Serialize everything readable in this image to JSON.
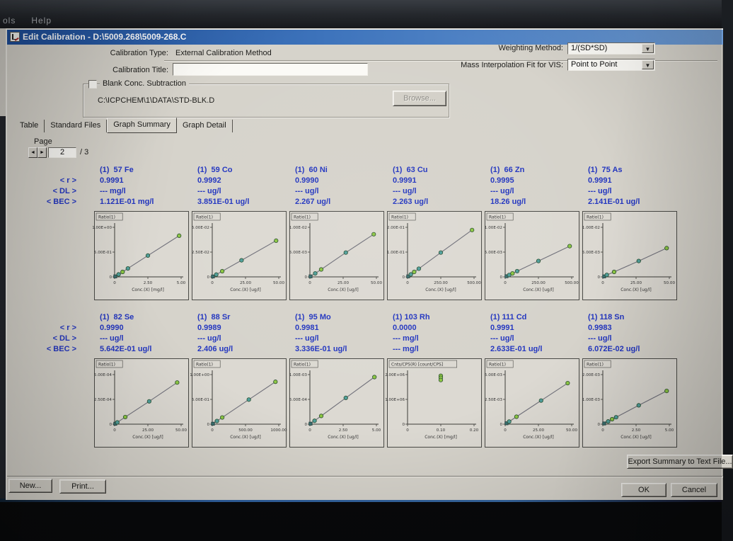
{
  "screen": {
    "menubar_left": "ols",
    "menubar_right": "Help"
  },
  "window": {
    "title": "Edit Calibration - D:\\5009.268\\5009-268.C",
    "form": {
      "calibration_type_label": "Calibration Type:",
      "calibration_type_value": "External Calibration Method",
      "calibration_title_label": "Calibration Title:",
      "calibration_title_value": "",
      "weighting_method_label": "Weighting Method:",
      "weighting_method_value": "1/(SD*SD)",
      "mass_interp_label": "Mass Interpolation Fit for VIS:",
      "mass_interp_value": "Point to Point",
      "blank_group_label": "Blank Conc. Subtraction",
      "blank_path": "C:\\ICPCHEM\\1\\DATA\\STD-BLK.D",
      "browse_label": "Browse..."
    },
    "tabs": [
      {
        "label": "Table",
        "active": false
      },
      {
        "label": "Standard Files",
        "active": false
      },
      {
        "label": "Graph Summary",
        "active": true
      },
      {
        "label": "Graph Detail",
        "active": false
      }
    ],
    "page": {
      "label": "Page",
      "value": "2",
      "total": "/ 3"
    },
    "row_labels": [
      "< r >",
      "< DL >",
      "< BEC >"
    ],
    "buttons": {
      "export": "Export Summary to Text File...",
      "new": "New...",
      "print": "Print...",
      "ok": "OK",
      "cancel": "Cancel"
    }
  },
  "colors": {
    "accent_blue": "#2336c0",
    "marker_green": "#8cc643",
    "marker_teal": "#4f9e9b",
    "fit_line": "#70707a",
    "titlebar_blue": "#3e74bc"
  },
  "chart_data": [
    {
      "element": "(1)  57 Fe",
      "r": "0.9991",
      "dl": "--- mg/l",
      "bec": "1.121E-01 mg/l",
      "type": "scatter",
      "ylabel": "Ratio(1)",
      "xlabel": "Conc.(X) [mg/l]",
      "yticks": [
        "1.00E+00",
        "5.00E-01",
        "0"
      ],
      "xticks": [
        "0",
        "2.50",
        "5.00"
      ],
      "xmax": 5,
      "ymax": 1.0,
      "line": true,
      "points": [
        [
          0.05,
          0.01
        ],
        [
          0.3,
          0.05
        ],
        [
          0.6,
          0.1
        ],
        [
          1.0,
          0.17
        ],
        [
          2.5,
          0.43
        ],
        [
          4.85,
          0.83
        ]
      ]
    },
    {
      "element": "(1)  59 Co",
      "r": "0.9992",
      "dl": "--- ug/l",
      "bec": "3.851E-01 ug/l",
      "type": "scatter",
      "ylabel": "Ratio(1)",
      "xlabel": "Conc.(X) [ug/l]",
      "yticks": [
        "5.00E-02",
        "2.50E-02",
        "0"
      ],
      "xticks": [
        "0",
        "25.00",
        "50.00"
      ],
      "xmax": 50,
      "ymax": 0.05,
      "line": true,
      "points": [
        [
          0.5,
          0.0004
        ],
        [
          3,
          0.0023
        ],
        [
          7.5,
          0.0057
        ],
        [
          22,
          0.0167
        ],
        [
          48,
          0.0365
        ]
      ]
    },
    {
      "element": "(1)  60 Ni",
      "r": "0.9990",
      "dl": "--- ug/l",
      "bec": "2.267 ug/l",
      "type": "scatter",
      "ylabel": "Ratio(1)",
      "xlabel": "Conc.(X) [ug/l]",
      "yticks": [
        "1.00E-02",
        "5.00E-03",
        "0"
      ],
      "xticks": [
        "0",
        "25.00",
        "50.00"
      ],
      "xmax": 50,
      "ymax": 0.01,
      "line": true,
      "points": [
        [
          0.5,
          0.0001
        ],
        [
          4,
          0.0007
        ],
        [
          8.5,
          0.0015
        ],
        [
          27,
          0.0049
        ],
        [
          48,
          0.0086
        ]
      ]
    },
    {
      "element": "(1)  63 Cu",
      "r": "0.9991",
      "dl": "--- ug/l",
      "bec": "2.263 ug/l",
      "type": "scatter",
      "ylabel": "Ratio(1)",
      "xlabel": "Conc.(X) [ug/l]",
      "yticks": [
        "2.00E-01",
        "1.00E-01",
        "0"
      ],
      "xticks": [
        "0",
        "250.00",
        "500.00"
      ],
      "xmax": 500,
      "ymax": 0.2,
      "line": true,
      "points": [
        [
          5,
          0.002
        ],
        [
          25,
          0.01
        ],
        [
          50,
          0.02
        ],
        [
          85,
          0.033
        ],
        [
          250,
          0.098
        ],
        [
          485,
          0.189
        ]
      ]
    },
    {
      "element": "(1)  66 Zn",
      "r": "0.9995",
      "dl": "--- ug/l",
      "bec": "18.26 ug/l",
      "type": "scatter",
      "ylabel": "Ratio(1)",
      "xlabel": "Conc.(X) [ug/l]",
      "yticks": [
        "1.00E-02",
        "5.00E-03",
        "0"
      ],
      "xticks": [
        "0",
        "250.00",
        "500.00"
      ],
      "xmax": 500,
      "ymax": 0.01,
      "line": true,
      "points": [
        [
          10,
          0.00013
        ],
        [
          30,
          0.00038
        ],
        [
          55,
          0.0007
        ],
        [
          90,
          0.00115
        ],
        [
          250,
          0.0032
        ],
        [
          485,
          0.0062
        ]
      ]
    },
    {
      "element": "(1)  75 As",
      "r": "0.9991",
      "dl": "--- ug/l",
      "bec": "2.141E-01 ug/l",
      "type": "scatter",
      "ylabel": "Ratio(1)",
      "xlabel": "Conc.(X) [ug/l]",
      "yticks": [
        "1.00E-02",
        "5.00E-03",
        "0"
      ],
      "xticks": [
        "0",
        "25.00",
        "50.00"
      ],
      "xmax": 50,
      "ymax": 0.01,
      "line": true,
      "points": [
        [
          1,
          0.0001
        ],
        [
          3,
          0.0004
        ],
        [
          8.5,
          0.001
        ],
        [
          27,
          0.0032
        ],
        [
          48,
          0.0058
        ]
      ]
    },
    {
      "element": "(1)  82 Se",
      "r": "0.9990",
      "dl": "--- ug/l",
      "bec": "5.642E-01 ug/l",
      "type": "scatter",
      "ylabel": "Ratio(1)",
      "xlabel": "Conc.(X) [ug/l]",
      "yticks": [
        "5.00E-04",
        "2.50E-04",
        "0"
      ],
      "xticks": [
        "0",
        "25.00",
        "50.00"
      ],
      "xmax": 50,
      "ymax": 0.0005,
      "line": true,
      "points": [
        [
          0.5,
          4.5e-06
        ],
        [
          2,
          1.8e-05
        ],
        [
          8,
          7.2e-05
        ],
        [
          26,
          0.00023
        ],
        [
          47,
          0.00042
        ]
      ]
    },
    {
      "element": "(1)  88 Sr",
      "r": "0.9989",
      "dl": "--- ug/l",
      "bec": "2.406 ug/l",
      "type": "scatter",
      "ylabel": "Ratio(1)",
      "xlabel": "Conc.(X) [ug/l]",
      "yticks": [
        "1.00E+00",
        "5.00E-01",
        "0"
      ],
      "xticks": [
        "0",
        "500.00",
        "1000.00"
      ],
      "xmax": 1000,
      "ymax": 1.0,
      "line": true,
      "points": [
        [
          10,
          0.009
        ],
        [
          70,
          0.063
        ],
        [
          150,
          0.135
        ],
        [
          550,
          0.495
        ],
        [
          950,
          0.855
        ]
      ]
    },
    {
      "element": "(1)  95 Mo",
      "r": "0.9981",
      "dl": "--- ug/l",
      "bec": "3.336E-01 ug/l",
      "type": "scatter",
      "ylabel": "Ratio(1)",
      "xlabel": "Conc.(X) [ug/l]",
      "yticks": [
        "1.00E-03",
        "5.00E-04",
        "0"
      ],
      "xticks": [
        "0",
        "2.50",
        "5.00"
      ],
      "xmax": 5,
      "ymax": 0.001,
      "line": true,
      "points": [
        [
          0.05,
          1e-05
        ],
        [
          0.35,
          6.8e-05
        ],
        [
          0.85,
          0.000166
        ],
        [
          2.7,
          0.00053
        ],
        [
          4.85,
          0.00095
        ]
      ]
    },
    {
      "element": "(1) 103 Rh",
      "r": "0.0000",
      "dl": "--- mg/l",
      "bec": "--- mg/l",
      "type": "scatter",
      "ylabel": "Cnts/CPS(R) [count/CPS]",
      "xlabel": "Conc.(X) [mg/l]",
      "yticks": [
        "2.00E+06",
        "1.00E+06",
        "0"
      ],
      "xticks": [
        "0",
        "0.10",
        "0.20"
      ],
      "xmax": 0.2,
      "ymax": 2000000,
      "line": false,
      "points": [
        [
          0.1,
          1950000
        ],
        [
          0.1,
          1870000
        ],
        [
          0.1,
          1780000
        ]
      ]
    },
    {
      "element": "(1) 111 Cd",
      "r": "0.9991",
      "dl": "--- ug/l",
      "bec": "2.633E-01 ug/l",
      "type": "scatter",
      "ylabel": "Ratio(1)",
      "xlabel": "Conc.(X) [ug/l]",
      "yticks": [
        "5.00E-03",
        "2.50E-03",
        "0"
      ],
      "xticks": [
        "0",
        "25.00",
        "50.00"
      ],
      "xmax": 50,
      "ymax": 0.005,
      "line": true,
      "points": [
        [
          1,
          8.8e-05
        ],
        [
          3,
          0.00026
        ],
        [
          8.5,
          0.00075
        ],
        [
          27,
          0.00238
        ],
        [
          47,
          0.00414
        ]
      ]
    },
    {
      "element": "(1) 118 Sn",
      "r": "0.9983",
      "dl": "--- ug/l",
      "bec": "6.072E-02 ug/l",
      "type": "scatter",
      "ylabel": "Ratio(1)",
      "xlabel": "Conc.(X) [ug/l]",
      "yticks": [
        "2.00E-03",
        "1.00E-03",
        "0"
      ],
      "xticks": [
        "0",
        "2.50",
        "5.00"
      ],
      "xmax": 5,
      "ymax": 0.002,
      "line": true,
      "points": [
        [
          0.1,
          2.8e-05
        ],
        [
          0.4,
          0.00011
        ],
        [
          0.7,
          0.0002
        ],
        [
          1.0,
          0.00028
        ],
        [
          2.7,
          0.00076
        ],
        [
          4.8,
          0.00134
        ]
      ]
    }
  ]
}
